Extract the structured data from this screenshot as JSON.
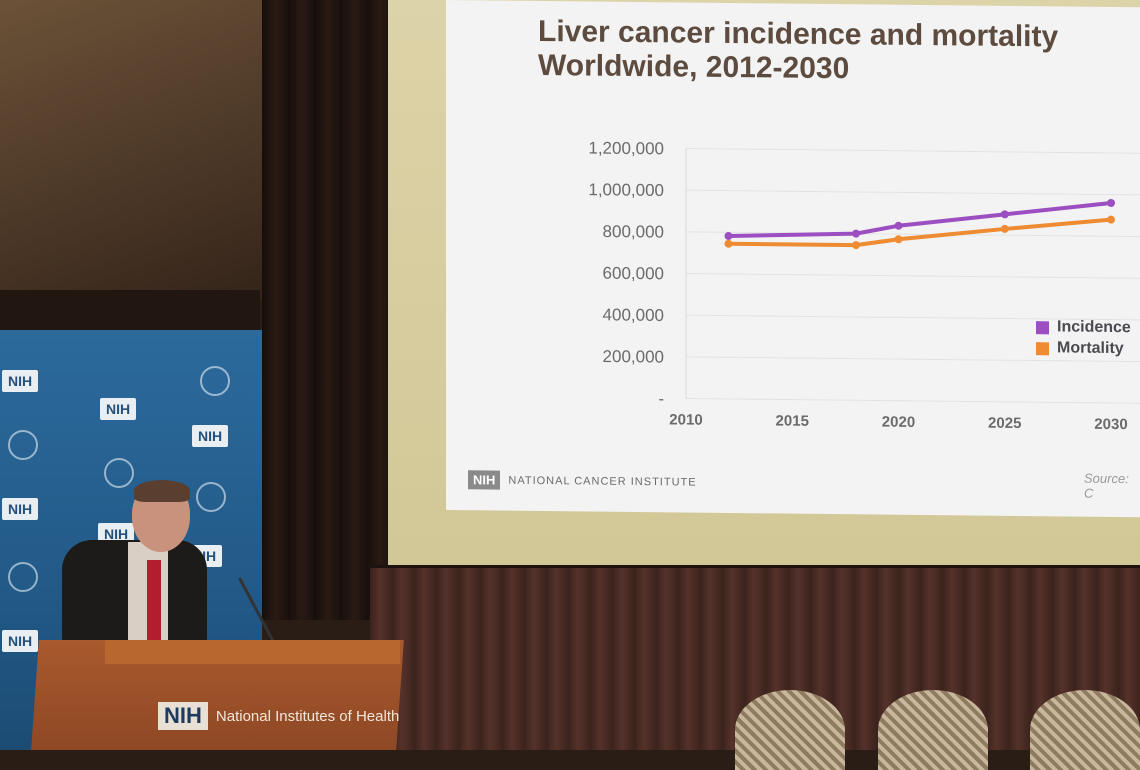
{
  "slide": {
    "title_line1": "Liver cancer incidence and mortality",
    "title_line2": "Worldwide, 2012-2030",
    "footer_badge": "NIH",
    "footer_text": "NATIONAL CANCER INSTITUTE",
    "source": "Source: C"
  },
  "chart_data": {
    "type": "line",
    "x": [
      2012,
      2018,
      2020,
      2025,
      2030
    ],
    "series": [
      {
        "name": "Incidence",
        "color": "#9b4fc0",
        "values": [
          782000,
          800000,
          840000,
          900000,
          960000
        ]
      },
      {
        "name": "Mortality",
        "color": "#ef8b32",
        "values": [
          745000,
          745000,
          775000,
          830000,
          880000
        ]
      }
    ],
    "xticks": [
      "2010",
      "2015",
      "2020",
      "2025",
      "2030"
    ],
    "yticks": [
      "1,200,000",
      "1,000,000",
      "800,000",
      "600,000",
      "400,000",
      "200,000",
      "-"
    ],
    "xlim": [
      2010,
      2030
    ],
    "ylim": [
      0,
      1200000
    ],
    "grid": true,
    "legend": "right"
  },
  "backdrop": {
    "logo_text": "NIH"
  },
  "podium": {
    "logo": "NIH",
    "text": "National Institutes of Health"
  }
}
